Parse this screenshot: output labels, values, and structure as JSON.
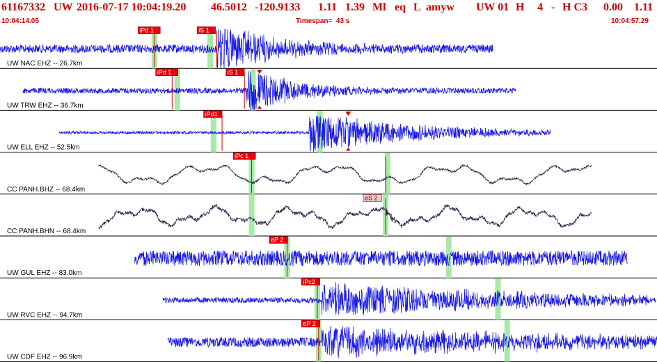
{
  "header": {
    "event_id": "61167332",
    "network": "UW",
    "origin_datetime": "2016-07-17 10:04:19.20",
    "latitude": "46.5012",
    "longitude": "-120.9133",
    "depth": "1.11",
    "magnitude": "1.39",
    "magnitude_type": "Ml",
    "event_type": "eq",
    "location_flag": "L",
    "author": "amyw",
    "source": "UW 01",
    "h_flag": "H",
    "count": "4",
    "dash": "-",
    "quality": "H C3",
    "val1": "0.00",
    "val2": "1.11"
  },
  "timeline": {
    "start_time": "10:04:14.05",
    "timespan_label": "Timespan=  43 s",
    "end_time": "10:04:57.29"
  },
  "colors": {
    "ehz_trace": "#1a1ae6",
    "bh_trace": "#2a2a50",
    "pick_band": "#a8eaa8",
    "pick_box": "#e8000c",
    "pick_box_light": "#f8c8c8",
    "header_text": "#cc0000"
  },
  "traces": [
    {
      "label": "UW NAC EHZ -- 26.7km",
      "style": "ehz",
      "start": 0.0,
      "end": 0.75,
      "amp": 6,
      "bursts": [
        {
          "at": 0.33,
          "gain": 4.0,
          "decay": 12
        }
      ],
      "picks": [
        {
          "text": "iPd 1",
          "pos": 0.21,
          "kind": "box",
          "band": 0.235,
          "line": 0.235
        },
        {
          "text": "iS 1",
          "pos": 0.3,
          "kind": "box",
          "band": 0.32,
          "line": 0.33
        }
      ]
    },
    {
      "label": "UW TRW EHZ -- 36.7km",
      "style": "ehz",
      "start": 0.035,
      "end": 0.785,
      "amp": 4,
      "bursts": [
        {
          "at": 0.375,
          "gain": 5.5,
          "decay": 14
        }
      ],
      "picks": [
        {
          "text": "iPd 1",
          "pos": 0.237,
          "kind": "box",
          "band": 0.27,
          "line": 0.262
        },
        {
          "text": "iS 1",
          "pos": 0.344,
          "kind": "box",
          "band": 0.385,
          "line": 0.372
        }
      ],
      "marks": [
        0.395
      ]
    },
    {
      "label": "UW ELL EHZ -- 52.5km",
      "style": "ehz",
      "start": 0.09,
      "end": 0.84,
      "amp": 2,
      "bursts": [
        {
          "at": 0.47,
          "gain": 9.0,
          "decay": 6
        }
      ],
      "picks": [
        {
          "text": "iPd1",
          "pos": 0.31,
          "kind": "box",
          "band": 0.325,
          "line": 0.338
        },
        {
          "text": "",
          "pos": 0.485,
          "kind": "none",
          "band": 0.487,
          "line": null
        }
      ],
      "marks": [
        0.53
      ]
    },
    {
      "label": "CC PANH.BHZ -- 68.4km",
      "style": "bh",
      "start": 0.15,
      "end": 0.9,
      "amp": 1.5,
      "wave": [
        {
          "f": 0.9,
          "a": 10,
          "p": 0.3
        },
        {
          "f": 2.7,
          "a": 5,
          "p": 1.1
        },
        {
          "f": 6,
          "a": 2,
          "p": 2.2
        }
      ],
      "bursts": [],
      "picks": [
        {
          "text": "iPc 1",
          "pos": 0.355,
          "kind": "box",
          "band": 0.383,
          "line": 0.383
        },
        {
          "text": "",
          "pos": 0.59,
          "kind": "none",
          "band": 0.59,
          "line": 0.587
        }
      ]
    },
    {
      "label": "CC PANH.BHN -- 68.4km",
      "style": "bh",
      "start": 0.15,
      "end": 0.9,
      "amp": 2.5,
      "wave": [
        {
          "f": 1.4,
          "a": 9,
          "p": 0.0
        },
        {
          "f": 3.3,
          "a": 5,
          "p": 1.4
        },
        {
          "f": 9,
          "a": 2,
          "p": 0.7
        }
      ],
      "bursts": [
        {
          "at": 0.585,
          "gain": 3.0,
          "decay": 40
        }
      ],
      "picks": [
        {
          "text": "",
          "pos": 0.383,
          "kind": "none",
          "band": 0.383,
          "line": null
        },
        {
          "text": "eS 2",
          "pos": 0.553,
          "kind": "lightbox",
          "band": 0.587,
          "line": 0.587
        }
      ]
    },
    {
      "label": "UW GUL EHZ -- 83.0km",
      "style": "ehz",
      "start": 0.205,
      "end": 0.955,
      "amp": 11,
      "bursts": [],
      "picks": [
        {
          "text": "eP 2",
          "pos": 0.41,
          "kind": "box",
          "band": 0.437,
          "line": 0.437
        },
        {
          "text": "",
          "pos": 0.68,
          "kind": "none",
          "band": 0.683,
          "line": null
        }
      ]
    },
    {
      "label": "UW RVC EHZ -- 94.7km",
      "style": "ehz",
      "start": 0.248,
      "end": 0.998,
      "amp": 4,
      "bursts": [
        {
          "at": 0.49,
          "gain": 3.8,
          "decay": 3
        }
      ],
      "picks": [
        {
          "text": "iPc2",
          "pos": 0.459,
          "kind": "box",
          "band": 0.483,
          "line": 0.483
        },
        {
          "text": "",
          "pos": 0.758,
          "kind": "none",
          "band": 0.758,
          "line": null
        }
      ]
    },
    {
      "label": "UW CDF EHZ -- 96.9km",
      "style": "ehz",
      "start": 0.255,
      "end": 1.0,
      "amp": 7,
      "bursts": [
        {
          "at": 0.49,
          "gain": 2.0,
          "decay": 3
        }
      ],
      "picks": [
        {
          "text": "eP 2",
          "pos": 0.459,
          "kind": "box",
          "band": 0.485,
          "line": 0.485
        },
        {
          "text": "",
          "pos": 0.77,
          "kind": "none",
          "band": 0.772,
          "line": null
        }
      ]
    }
  ]
}
